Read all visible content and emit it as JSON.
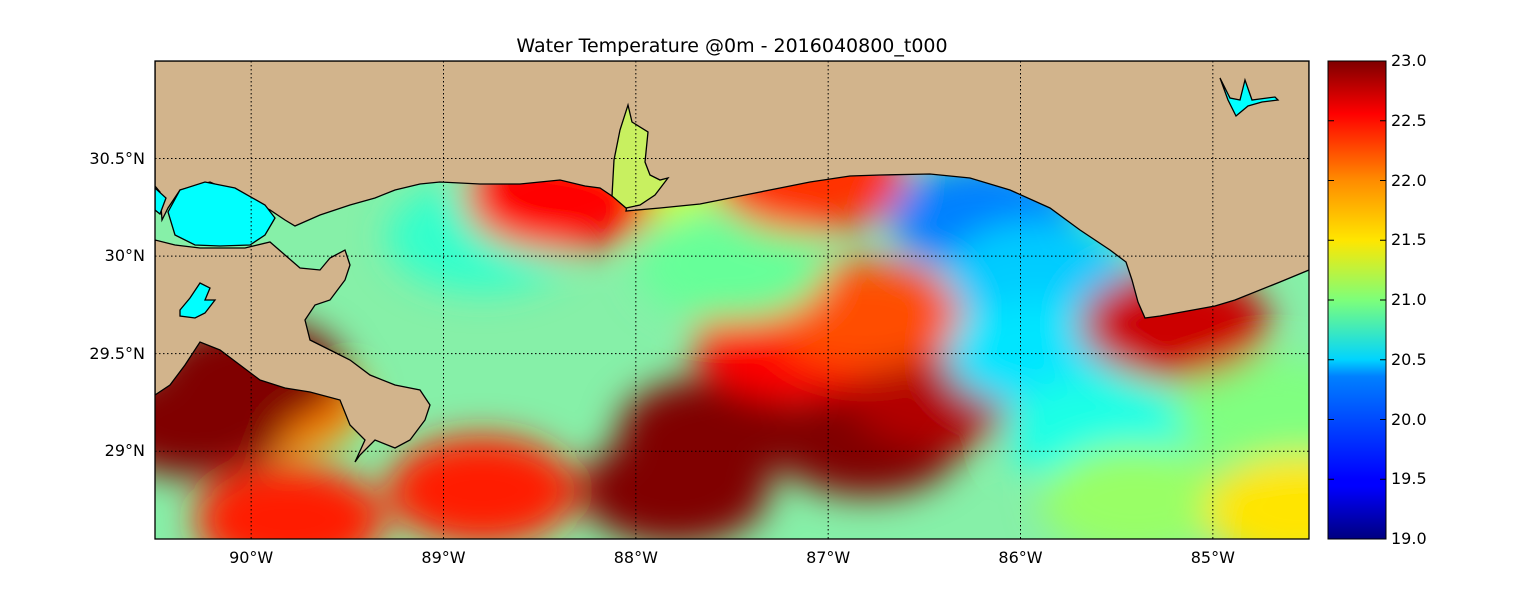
{
  "figure": {
    "title": "Water Temperature @0m - 2016040800_t000"
  },
  "map": {
    "lon_range": [
      -90.5,
      -84.5
    ],
    "lat_range": [
      28.55,
      31.0
    ],
    "lon_ticks": [
      {
        "value": -90,
        "label": "90°W"
      },
      {
        "value": -89,
        "label": "89°W"
      },
      {
        "value": -88,
        "label": "88°W"
      },
      {
        "value": -87,
        "label": "87°W"
      },
      {
        "value": -86,
        "label": "86°W"
      },
      {
        "value": -85,
        "label": "85°W"
      }
    ],
    "lat_ticks": [
      {
        "value": 30.5,
        "label": "30.5°N"
      },
      {
        "value": 30.0,
        "label": "30°N"
      },
      {
        "value": 29.5,
        "label": "29.5°N"
      },
      {
        "value": 29.0,
        "label": "29°N"
      }
    ],
    "grid": "dotted",
    "land_color": "#d2b48c",
    "lake_color": "#00ffff"
  },
  "colorbar": {
    "colormap": "jet",
    "min": 19.0,
    "max": 23.0,
    "ticks": [
      "23.0",
      "22.5",
      "22.0",
      "21.5",
      "21.0",
      "20.5",
      "20.0",
      "19.5",
      "19.0"
    ]
  },
  "chart_data": {
    "type": "heatmap",
    "title": "Water Temperature @0m - 2016040800_t000",
    "variable": "Water Temperature",
    "depth": "0m",
    "timestamp": "2016040800_t000",
    "x_axis": "longitude",
    "y_axis": "latitude",
    "xlim": [
      -90.5,
      -84.5
    ],
    "ylim": [
      28.55,
      31.0
    ],
    "value_range": [
      19.0,
      23.0
    ],
    "xticklabels": [
      "90°W",
      "89°W",
      "88°W",
      "87°W",
      "86°W",
      "85°W"
    ],
    "yticklabels": [
      "30.5°N",
      "30°N",
      "29.5°N",
      "29°N"
    ],
    "colorbar_ticks": [
      23.0,
      22.5,
      22.0,
      21.5,
      21.0,
      20.5,
      20.0,
      19.5,
      19.0
    ],
    "features": [
      {
        "lon": -87.8,
        "lat": 28.8,
        "value": 23.0
      },
      {
        "lon": -87.6,
        "lat": 29.1,
        "value": 23.0
      },
      {
        "lon": -86.8,
        "lat": 29.05,
        "value": 23.0
      },
      {
        "lon": -86.4,
        "lat": 29.3,
        "value": 22.8
      },
      {
        "lon": -87.2,
        "lat": 29.55,
        "value": 22.5
      },
      {
        "lon": -86.8,
        "lat": 29.7,
        "value": 22.2
      },
      {
        "lon": -88.8,
        "lat": 28.8,
        "value": 22.4
      },
      {
        "lon": -89.8,
        "lat": 28.65,
        "value": 22.4
      },
      {
        "lon": -89.9,
        "lat": 29.25,
        "value": 22.0
      },
      {
        "lon": -87.5,
        "lat": 29.95,
        "value": 20.9
      },
      {
        "lon": -88.8,
        "lat": 30.1,
        "value": 20.7
      },
      {
        "lon": -86.2,
        "lat": 30.2,
        "value": 20.0
      },
      {
        "lon": -85.9,
        "lat": 29.9,
        "value": 20.3
      },
      {
        "lon": -85.9,
        "lat": 29.5,
        "value": 20.4
      },
      {
        "lon": -85.6,
        "lat": 29.1,
        "value": 20.6
      },
      {
        "lon": -85.4,
        "lat": 28.75,
        "value": 21.1
      },
      {
        "lon": -84.7,
        "lat": 29.2,
        "value": 21.0
      },
      {
        "lon": -84.55,
        "lat": 28.7,
        "value": 21.6
      },
      {
        "lon": -85.2,
        "lat": 29.65,
        "value": 22.7
      },
      {
        "lon": -88.0,
        "lat": 30.45,
        "value": 21.3
      },
      {
        "lon": -88.4,
        "lat": 30.3,
        "value": 22.5
      },
      {
        "lon": -87.1,
        "lat": 30.4,
        "value": 22.3
      },
      {
        "lon": -90.3,
        "lat": 29.15,
        "value": 23.0
      },
      {
        "lon": -90.0,
        "lat": 29.4,
        "value": 23.0
      }
    ]
  }
}
